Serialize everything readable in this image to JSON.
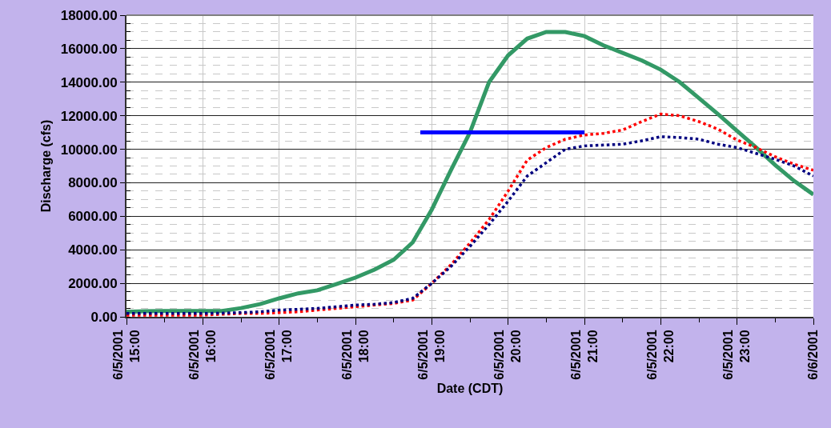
{
  "chart_data": {
    "type": "line",
    "xlabel": "Date (CDT)",
    "ylabel": "Discharge (cfs)",
    "x": [
      "2001-06-05T15:00",
      "2001-06-05T15:15",
      "2001-06-05T15:30",
      "2001-06-05T15:45",
      "2001-06-05T16:00",
      "2001-06-05T16:15",
      "2001-06-05T16:30",
      "2001-06-05T16:45",
      "2001-06-05T17:00",
      "2001-06-05T17:15",
      "2001-06-05T17:30",
      "2001-06-05T17:45",
      "2001-06-05T18:00",
      "2001-06-05T18:15",
      "2001-06-05T18:30",
      "2001-06-05T18:45",
      "2001-06-05T19:00",
      "2001-06-05T19:15",
      "2001-06-05T19:30",
      "2001-06-05T19:45",
      "2001-06-05T20:00",
      "2001-06-05T20:15",
      "2001-06-05T20:30",
      "2001-06-05T20:45",
      "2001-06-05T21:00",
      "2001-06-05T21:15",
      "2001-06-05T21:30",
      "2001-06-05T21:45",
      "2001-06-05T22:00",
      "2001-06-05T22:15",
      "2001-06-05T22:30",
      "2001-06-05T22:45",
      "2001-06-05T23:00",
      "2001-06-05T23:15",
      "2001-06-05T23:30",
      "2001-06-05T23:45",
      "2001-06-06T00:00"
    ],
    "series": [
      {
        "color": "#339966",
        "line_style": "solid",
        "values": [
          300,
          330,
          350,
          350,
          350,
          350,
          520,
          760,
          1100,
          1400,
          1580,
          1950,
          2340,
          2820,
          3400,
          4440,
          6400,
          8740,
          11000,
          14000,
          15600,
          16600,
          17000,
          17000,
          16750,
          16200,
          15750,
          15300,
          14750,
          14000,
          13050,
          12100,
          11100,
          10100,
          9050,
          8100,
          7300
        ]
      },
      {
        "color": "#ff0000",
        "line_style": "dotted",
        "values": [
          100,
          100,
          100,
          100,
          100,
          150,
          200,
          200,
          250,
          300,
          400,
          500,
          600,
          700,
          800,
          1000,
          2000,
          3100,
          4400,
          5800,
          7500,
          9350,
          10100,
          10600,
          10850,
          10950,
          11150,
          11650,
          12100,
          12000,
          11650,
          11200,
          10550,
          10100,
          9550,
          9100,
          8750
        ]
      },
      {
        "color": "#000080",
        "line_style": "dotted",
        "values": [
          200,
          200,
          200,
          200,
          200,
          220,
          250,
          300,
          400,
          450,
          500,
          600,
          700,
          750,
          850,
          1100,
          2000,
          3000,
          4200,
          5500,
          6900,
          8400,
          9200,
          10000,
          10200,
          10250,
          10300,
          10500,
          10750,
          10700,
          10600,
          10300,
          10100,
          9750,
          9400,
          9000,
          8400
        ]
      },
      {
        "color": "#0000ff",
        "line_style": "solid",
        "x": [
          "2001-06-05T18:51",
          "2001-06-05T21:00"
        ],
        "values": [
          11000,
          11000
        ]
      }
    ],
    "xlim": [
      "2001-06-05T15:00",
      "2001-06-06T00:00"
    ],
    "xticks": [
      {
        "value": "2001-06-05T15:00",
        "label": "6/5/2001\n15:00"
      },
      {
        "value": "2001-06-05T16:00",
        "label": "6/5/2001\n16:00"
      },
      {
        "value": "2001-06-05T17:00",
        "label": "6/5/2001\n17:00"
      },
      {
        "value": "2001-06-05T18:00",
        "label": "6/5/2001\n18:00"
      },
      {
        "value": "2001-06-05T19:00",
        "label": "6/5/2001\n19:00"
      },
      {
        "value": "2001-06-05T20:00",
        "label": "6/5/2001\n20:00"
      },
      {
        "value": "2001-06-05T21:00",
        "label": "6/5/2001\n21:00"
      },
      {
        "value": "2001-06-05T22:00",
        "label": "6/5/2001\n22:00"
      },
      {
        "value": "2001-06-05T23:00",
        "label": "6/5/2001\n23:00"
      },
      {
        "value": "2001-06-06T00:00",
        "label": "6/6/2001"
      }
    ],
    "ylim": [
      0,
      18000
    ],
    "yticks": [
      {
        "value": 0,
        "label": "0.00"
      },
      {
        "value": 2000,
        "label": "2000.00"
      },
      {
        "value": 4000,
        "label": "4000.00"
      },
      {
        "value": 6000,
        "label": "6000.00"
      },
      {
        "value": 8000,
        "label": "8000.00"
      },
      {
        "value": 10000,
        "label": "10000.00"
      },
      {
        "value": 12000,
        "label": "12000.00"
      },
      {
        "value": 14000,
        "label": "14000.00"
      },
      {
        "value": 16000,
        "label": "16000.00"
      },
      {
        "value": 18000,
        "label": "18000.00"
      }
    ],
    "grid": true,
    "marker": "none"
  }
}
